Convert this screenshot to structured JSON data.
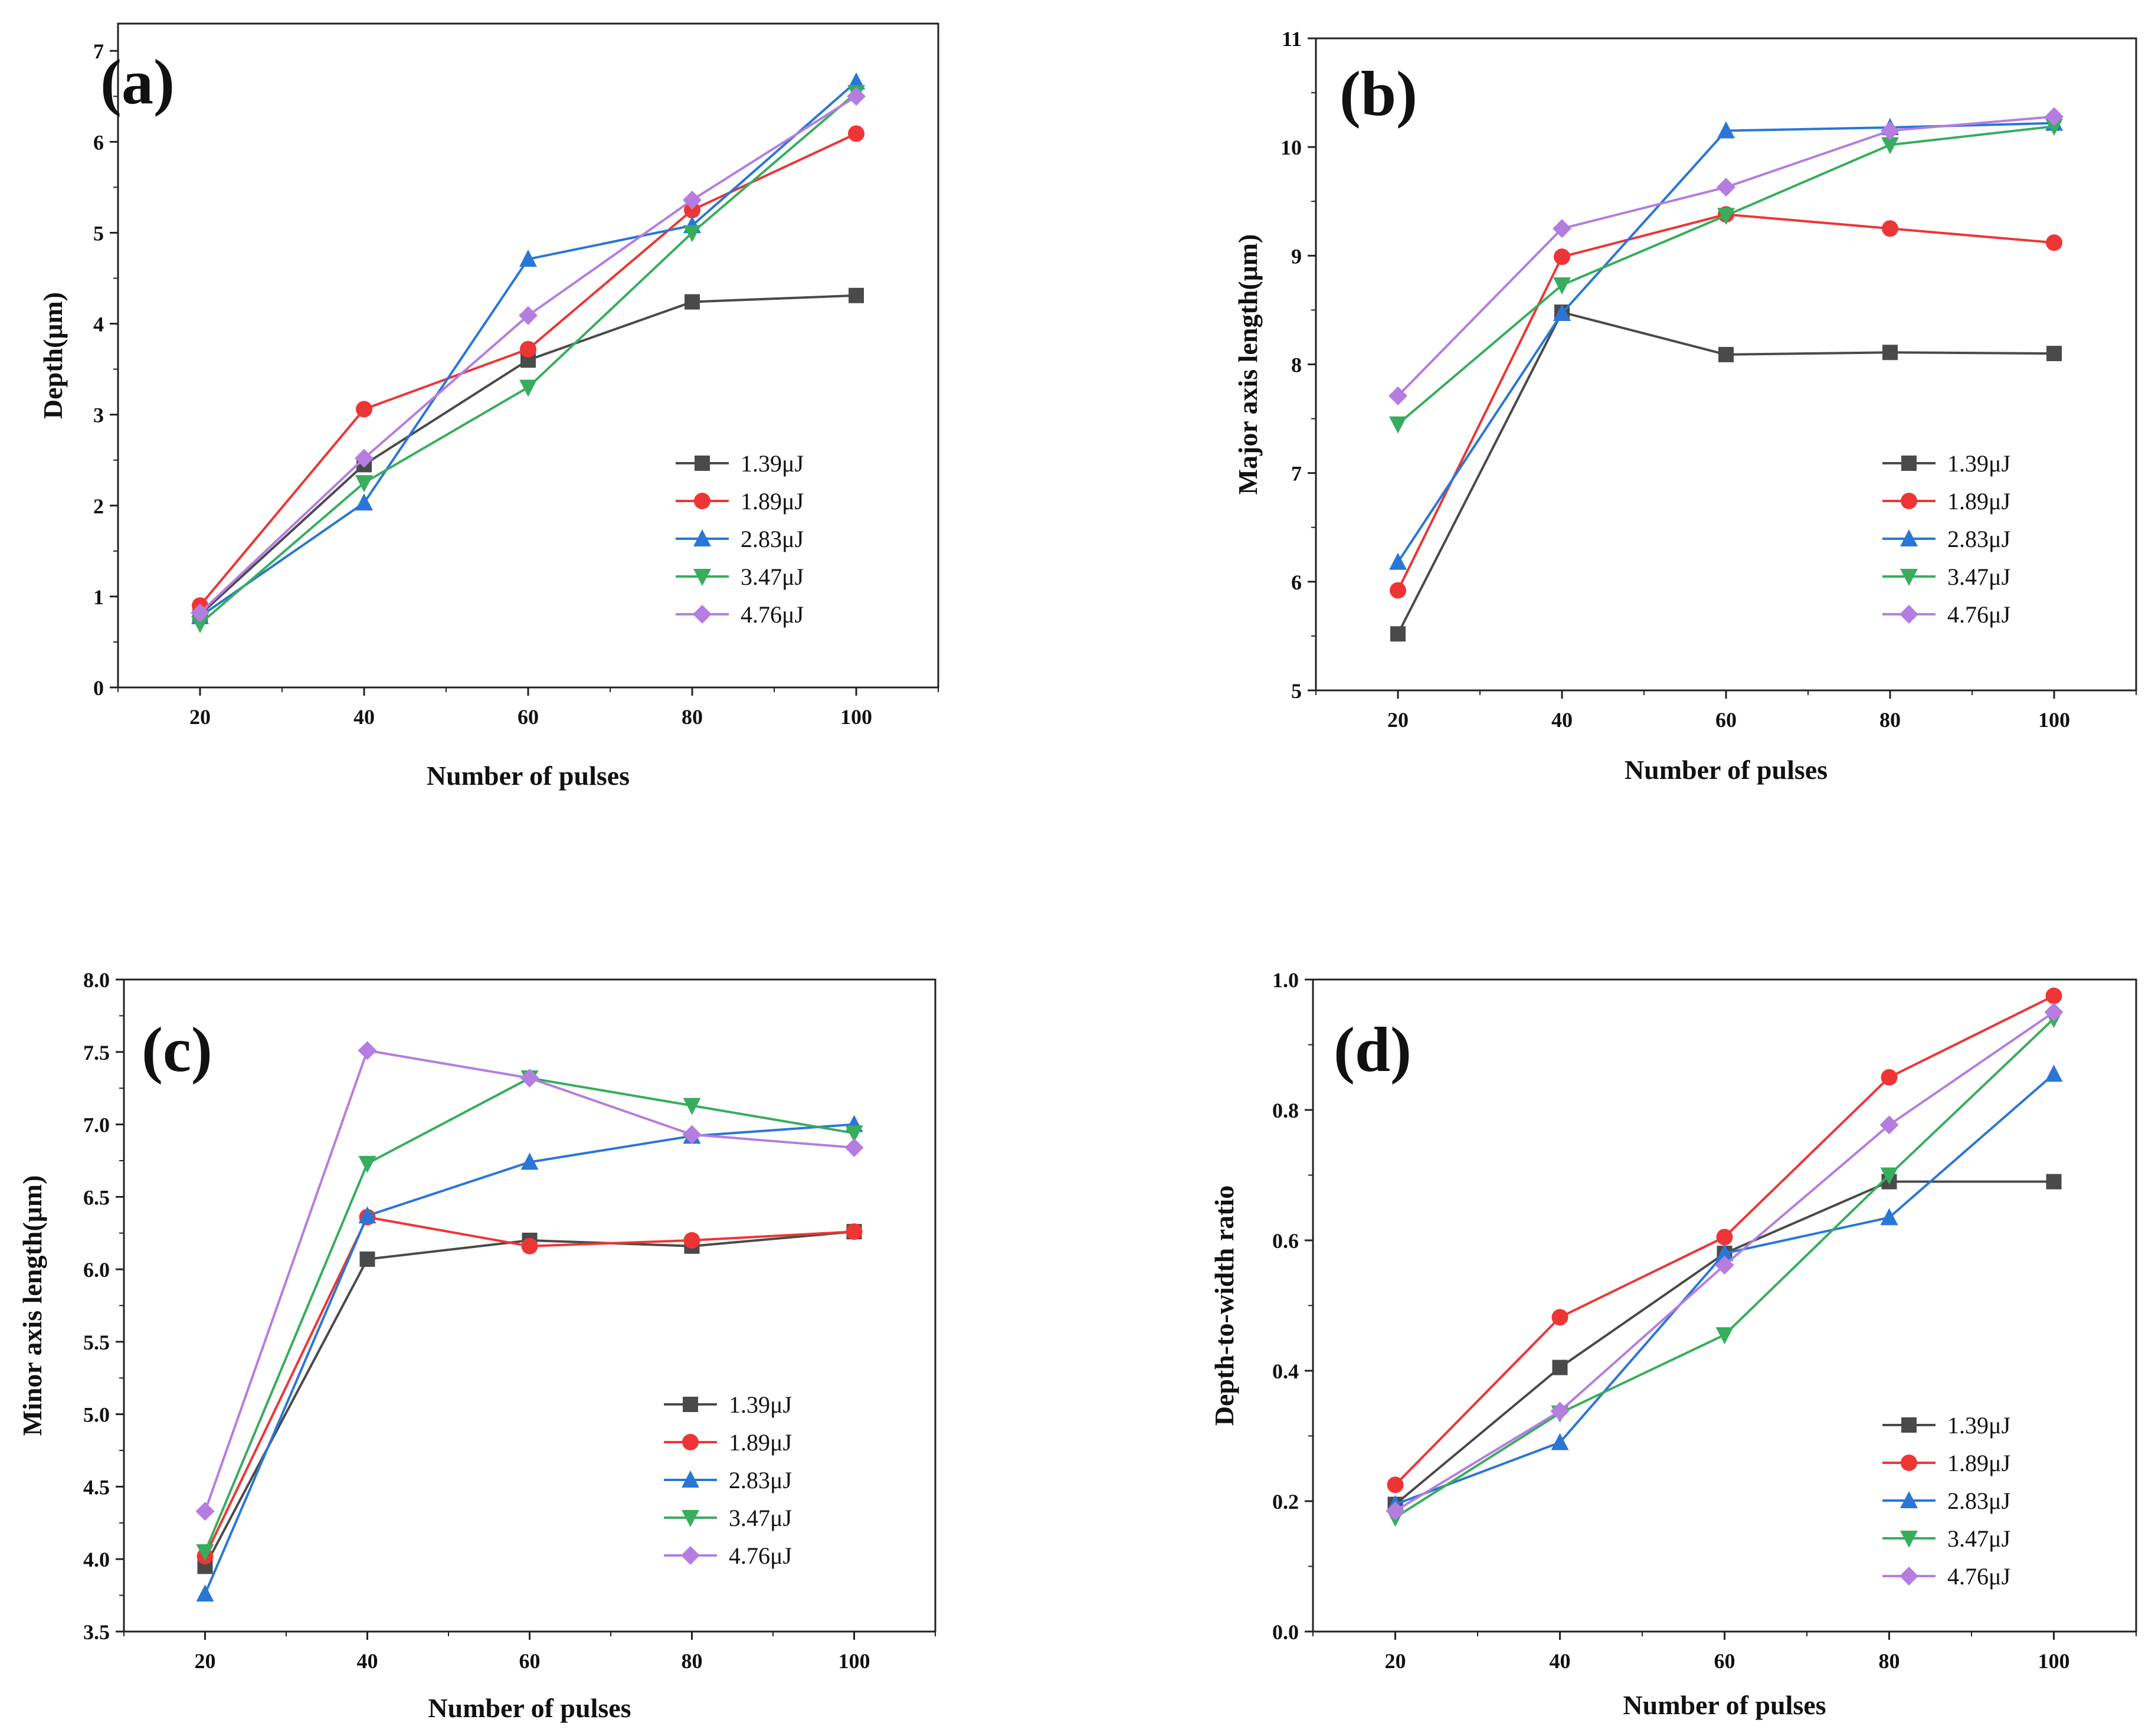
{
  "chart_data": [
    {
      "type": "line",
      "panel_label": "(a)",
      "title": "",
      "xlabel": "Number of pulses",
      "ylabel": "Depth(μm)",
      "x": [
        20,
        40,
        60,
        80,
        100
      ],
      "x_ticks": [
        "20",
        "40",
        "60",
        "80",
        "100"
      ],
      "xlim": [
        10,
        110
      ],
      "ylim": [
        0,
        7.3
      ],
      "y_ticks": [
        "0",
        "1",
        "2",
        "3",
        "4",
        "5",
        "6",
        "7"
      ],
      "y_tick_values": [
        0,
        1,
        2,
        3,
        4,
        5,
        6,
        7
      ],
      "legend_position": "lower-right",
      "series": [
        {
          "name": "1.39μJ",
          "values": [
            0.8,
            2.45,
            3.6,
            4.24,
            4.31
          ]
        },
        {
          "name": "1.89μJ",
          "values": [
            0.9,
            3.06,
            3.72,
            5.25,
            6.09
          ]
        },
        {
          "name": "2.83μJ",
          "values": [
            0.78,
            2.03,
            4.71,
            5.08,
            6.66
          ]
        },
        {
          "name": "3.47μJ",
          "values": [
            0.7,
            2.25,
            3.3,
            5.0,
            6.54
          ]
        },
        {
          "name": "4.76μJ",
          "values": [
            0.82,
            2.52,
            4.09,
            5.36,
            6.5
          ]
        }
      ]
    },
    {
      "type": "line",
      "panel_label": "(b)",
      "title": "",
      "xlabel": "Number of pulses",
      "ylabel": "Major axis length(μm)",
      "x": [
        20,
        40,
        60,
        80,
        100
      ],
      "x_ticks": [
        "20",
        "40",
        "60",
        "80",
        "100"
      ],
      "xlim": [
        10,
        110
      ],
      "ylim": [
        5,
        11
      ],
      "y_ticks": [
        "5",
        "6",
        "7",
        "8",
        "9",
        "10",
        "11"
      ],
      "y_tick_values": [
        5,
        6,
        7,
        8,
        9,
        10,
        11
      ],
      "legend_position": "lower-right",
      "series": [
        {
          "name": "1.39μJ",
          "values": [
            5.52,
            8.48,
            8.09,
            8.11,
            8.1
          ]
        },
        {
          "name": "1.89μJ",
          "values": [
            5.92,
            8.99,
            9.38,
            9.25,
            9.12
          ]
        },
        {
          "name": "2.83μJ",
          "values": [
            6.18,
            8.47,
            10.15,
            10.18,
            10.22
          ]
        },
        {
          "name": "3.47μJ",
          "values": [
            7.45,
            8.73,
            9.37,
            10.02,
            10.19
          ]
        },
        {
          "name": "4.76μJ",
          "values": [
            7.71,
            9.25,
            9.63,
            10.15,
            10.28
          ]
        }
      ]
    },
    {
      "type": "line",
      "panel_label": "(c)",
      "title": "",
      "xlabel": "Number of pulses",
      "ylabel": "Minor axis length(μm)",
      "x": [
        20,
        40,
        60,
        80,
        100
      ],
      "x_ticks": [
        "20",
        "40",
        "60",
        "80",
        "100"
      ],
      "xlim": [
        10,
        110
      ],
      "ylim": [
        3.5,
        8.0
      ],
      "y_ticks": [
        "3.5",
        "4.0",
        "4.5",
        "5.0",
        "5.5",
        "6.0",
        "6.5",
        "7.0",
        "7.5",
        "8.0"
      ],
      "y_tick_values": [
        3.5,
        4.0,
        4.5,
        5.0,
        5.5,
        6.0,
        6.5,
        7.0,
        7.5,
        8.0
      ],
      "legend_position": "lower-right",
      "series": [
        {
          "name": "1.39μJ",
          "values": [
            3.95,
            6.07,
            6.2,
            6.16,
            6.26
          ]
        },
        {
          "name": "1.89μJ",
          "values": [
            4.02,
            6.36,
            6.16,
            6.2,
            6.26
          ]
        },
        {
          "name": "2.83μJ",
          "values": [
            3.76,
            6.37,
            6.74,
            6.92,
            7.0
          ]
        },
        {
          "name": "3.47μJ",
          "values": [
            4.05,
            6.73,
            7.32,
            7.13,
            6.94
          ]
        },
        {
          "name": "4.76μJ",
          "values": [
            4.33,
            7.51,
            7.32,
            6.93,
            6.84
          ]
        }
      ]
    },
    {
      "type": "line",
      "panel_label": "(d)",
      "title": "",
      "xlabel": "Number of pulses",
      "ylabel": "Depth-to-width ratio",
      "x": [
        20,
        40,
        60,
        80,
        100
      ],
      "x_ticks": [
        "20",
        "40",
        "60",
        "80",
        "100"
      ],
      "xlim": [
        10,
        110
      ],
      "ylim": [
        0,
        1.0
      ],
      "y_ticks": [
        "0.0",
        "0.2",
        "0.4",
        "0.6",
        "0.8",
        "1.0"
      ],
      "y_tick_values": [
        0,
        0.2,
        0.4,
        0.6,
        0.8,
        1.0
      ],
      "legend_position": "lower-right",
      "series": [
        {
          "name": "1.39μJ",
          "values": [
            0.195,
            0.405,
            0.58,
            0.69,
            0.69
          ]
        },
        {
          "name": "1.89μJ",
          "values": [
            0.225,
            0.482,
            0.605,
            0.85,
            0.975
          ]
        },
        {
          "name": "2.83μJ",
          "values": [
            0.195,
            0.29,
            0.58,
            0.635,
            0.855
          ]
        },
        {
          "name": "3.47μJ",
          "values": [
            0.175,
            0.335,
            0.455,
            0.7,
            0.94
          ]
        },
        {
          "name": "4.76μJ",
          "values": [
            0.185,
            0.338,
            0.562,
            0.777,
            0.95
          ]
        }
      ]
    }
  ],
  "series_styles": [
    {
      "color": "#4a4a4a",
      "marker": "square"
    },
    {
      "color": "#ee3535",
      "marker": "circle"
    },
    {
      "color": "#2a76d6",
      "marker": "triangle-up"
    },
    {
      "color": "#37ad5d",
      "marker": "triangle-down"
    },
    {
      "color": "#b57ddf",
      "marker": "diamond"
    }
  ]
}
